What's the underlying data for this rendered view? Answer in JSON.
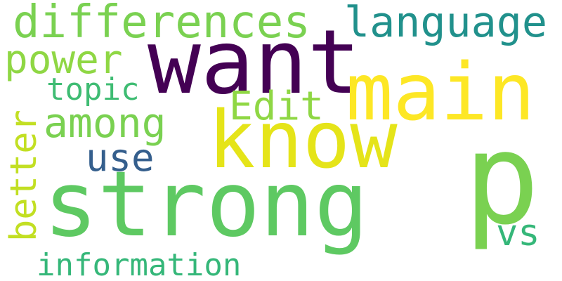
{
  "words": {
    "strong": {
      "text": "strong",
      "color": "#5ec962"
    },
    "p": {
      "text": "p",
      "color": "#7ad151"
    },
    "want": {
      "text": "want",
      "color": "#440154"
    },
    "know": {
      "text": "know",
      "color": "#e5e419"
    },
    "main": {
      "text": "main",
      "color": "#fde725"
    },
    "differences": {
      "text": "differences",
      "color": "#7ad151"
    },
    "language": {
      "text": "language",
      "color": "#21918c"
    },
    "power": {
      "text": "power",
      "color": "#8fd744"
    },
    "topic": {
      "text": "topic",
      "color": "#3fbc73"
    },
    "Edit": {
      "text": "Edit",
      "color": "#8fd744"
    },
    "among": {
      "text": "among",
      "color": "#7ad151"
    },
    "use": {
      "text": "use",
      "color": "#355f8d"
    },
    "better": {
      "text": "better",
      "color": "#c2df23"
    },
    "vs": {
      "text": "vs",
      "color": "#35b779"
    },
    "information": {
      "text": "information",
      "color": "#35b779"
    }
  }
}
